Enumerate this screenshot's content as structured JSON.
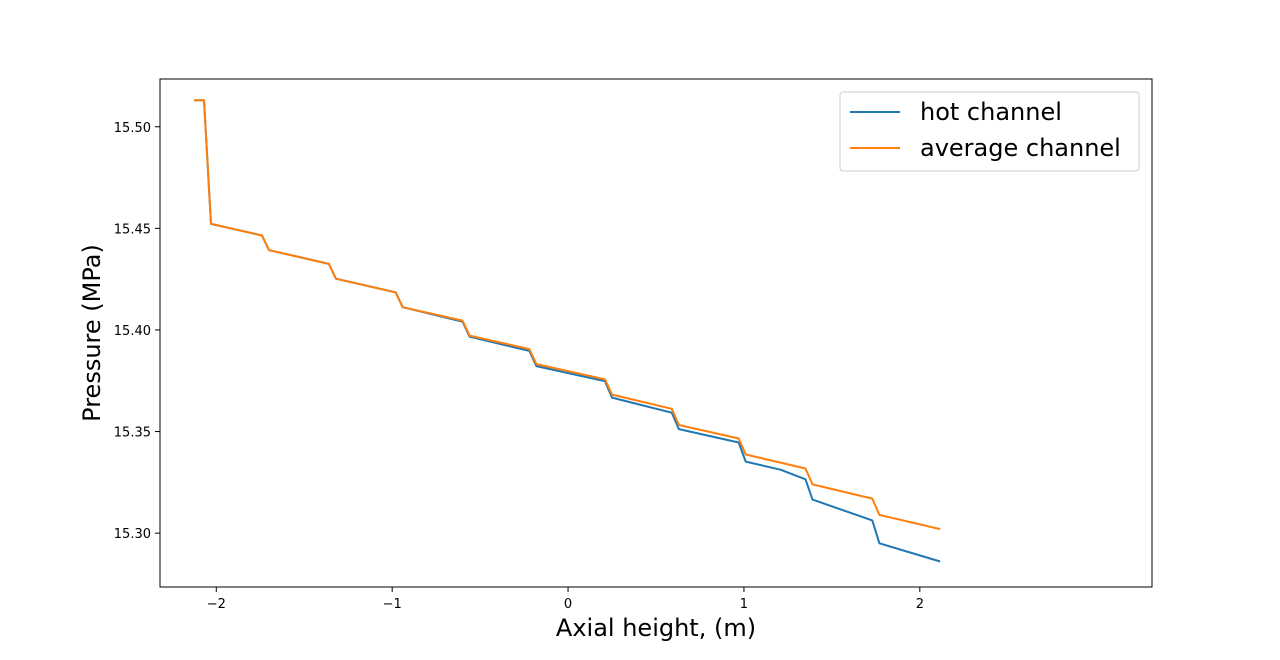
{
  "chart_data": {
    "type": "line",
    "title": "",
    "xlabel": "Axial height, (m)",
    "ylabel": "Pressure (MPa)",
    "xlim": [
      -2.32,
      3.32
    ],
    "ylim": [
      15.2735,
      15.5235
    ],
    "xticks": [
      -2,
      -1,
      0,
      1,
      2
    ],
    "xtick_labels": [
      "−2",
      "−1",
      "0",
      "1",
      "2"
    ],
    "yticks": [
      15.3,
      15.35,
      15.4,
      15.45,
      15.5
    ],
    "ytick_labels": [
      "15.30",
      "15.35",
      "15.40",
      "15.45",
      "15.50"
    ],
    "grid": false,
    "legend_position": "top-right",
    "series": [
      {
        "name": "hot channel",
        "color": "#1f77b4",
        "x": [
          -2.12,
          -2.07,
          -2.03,
          -1.74,
          -1.7,
          -1.36,
          -1.32,
          -0.98,
          -0.94,
          -0.6,
          -0.56,
          -0.22,
          -0.18,
          0.21,
          0.25,
          0.59,
          0.63,
          0.97,
          1.01,
          1.21,
          1.35,
          1.39,
          1.73,
          1.77,
          2.11
        ],
        "y": [
          15.513,
          15.513,
          15.4522,
          15.4465,
          15.4393,
          15.4325,
          15.4252,
          15.4185,
          15.4112,
          15.4041,
          15.3967,
          15.3897,
          15.3822,
          15.3748,
          15.3667,
          15.3593,
          15.3512,
          15.3446,
          15.3352,
          15.3312,
          15.3265,
          15.3165,
          15.3063,
          15.295,
          15.2862
        ]
      },
      {
        "name": "average channel",
        "color": "#ff7f0e",
        "x": [
          -2.12,
          -2.07,
          -2.03,
          -1.74,
          -1.7,
          -1.36,
          -1.32,
          -0.98,
          -0.94,
          -0.6,
          -0.56,
          -0.22,
          -0.18,
          0.21,
          0.25,
          0.59,
          0.63,
          0.97,
          1.01,
          1.35,
          1.39,
          1.73,
          1.77,
          2.11
        ],
        "y": [
          15.513,
          15.513,
          15.4522,
          15.4465,
          15.4393,
          15.4325,
          15.4252,
          15.4185,
          15.4112,
          15.4046,
          15.3972,
          15.3906,
          15.3832,
          15.3757,
          15.3682,
          15.3612,
          15.3532,
          15.3466,
          15.3387,
          15.3318,
          15.324,
          15.317,
          15.309,
          15.3021
        ]
      }
    ]
  }
}
